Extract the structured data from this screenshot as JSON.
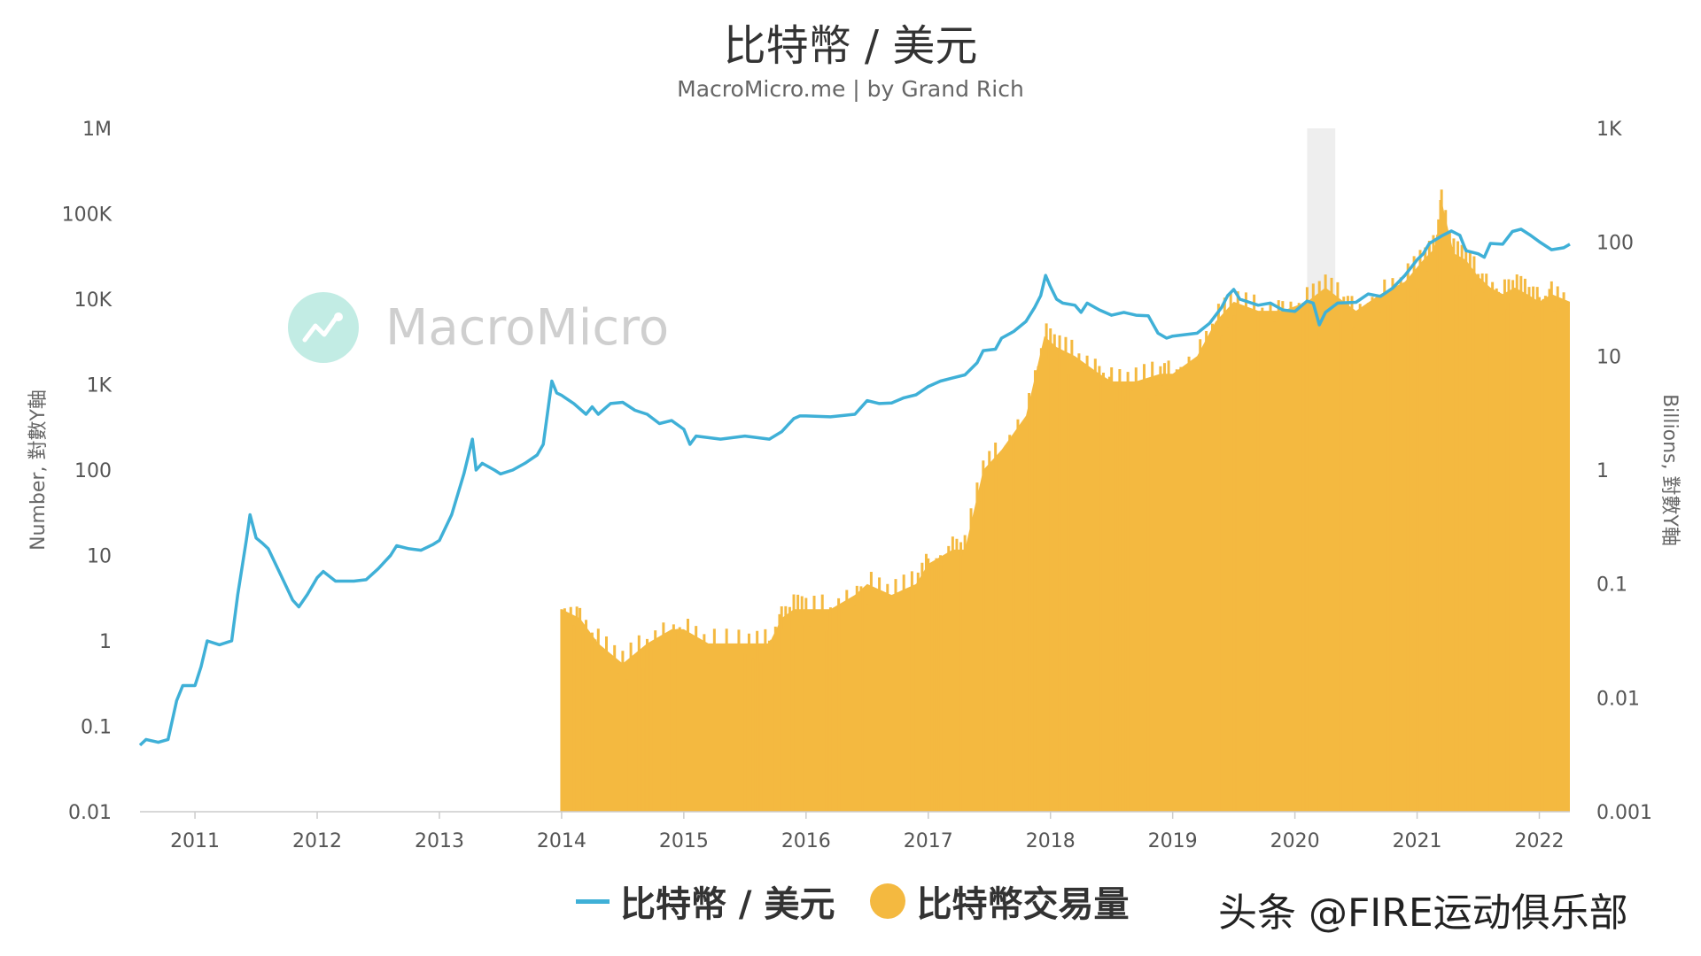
{
  "title": "比特幣 / 美元",
  "subtitle": "MacroMicro.me | by Grand Rich",
  "watermark": "MacroMicro",
  "credit": "头条 @FIRE运动俱乐部",
  "legend": {
    "price_label": "比特幣 / 美元",
    "volume_label": "比特幣交易量"
  },
  "colors": {
    "price": "#3fb0d7",
    "volume": "#f4b940",
    "shade": "#eeeeee"
  },
  "chart_data": {
    "type": "line",
    "left_axis": {
      "label": "Number, 對數Y軸",
      "scale": "log",
      "range": [
        0.01,
        1000000
      ],
      "ticks": [
        {
          "value": 0.01,
          "label": "0.01"
        },
        {
          "value": 0.1,
          "label": "0.1"
        },
        {
          "value": 1,
          "label": "1"
        },
        {
          "value": 10,
          "label": "10"
        },
        {
          "value": 100,
          "label": "100"
        },
        {
          "value": 1000,
          "label": "1K"
        },
        {
          "value": 10000,
          "label": "10K"
        },
        {
          "value": 100000,
          "label": "100K"
        },
        {
          "value": 1000000,
          "label": "1M"
        }
      ]
    },
    "right_axis": {
      "label": "Billions, 對數Y軸",
      "scale": "log",
      "range": [
        0.001,
        1000
      ],
      "ticks": [
        {
          "value": 0.001,
          "label": "0.001"
        },
        {
          "value": 0.01,
          "label": "0.01"
        },
        {
          "value": 0.1,
          "label": "0.1"
        },
        {
          "value": 1,
          "label": "1"
        },
        {
          "value": 10,
          "label": "10"
        },
        {
          "value": 100,
          "label": "100"
        },
        {
          "value": 1000,
          "label": "1K"
        }
      ]
    },
    "x_axis": {
      "range": [
        2010.55,
        2022.25
      ],
      "ticks": [
        "2011",
        "2012",
        "2013",
        "2014",
        "2015",
        "2016",
        "2017",
        "2018",
        "2019",
        "2020",
        "2021",
        "2022"
      ]
    },
    "shaded_period": [
      2020.1,
      2020.33
    ],
    "series": [
      {
        "name": "比特幣 / 美元",
        "axis": "left",
        "points": [
          [
            2010.55,
            0.06
          ],
          [
            2010.6,
            0.07
          ],
          [
            2010.7,
            0.065
          ],
          [
            2010.78,
            0.07
          ],
          [
            2010.85,
            0.2
          ],
          [
            2010.9,
            0.3
          ],
          [
            2011.0,
            0.3
          ],
          [
            2011.05,
            0.5
          ],
          [
            2011.1,
            1.0
          ],
          [
            2011.2,
            0.9
          ],
          [
            2011.3,
            1.0
          ],
          [
            2011.35,
            3.5
          ],
          [
            2011.42,
            15
          ],
          [
            2011.45,
            30
          ],
          [
            2011.5,
            16
          ],
          [
            2011.55,
            14
          ],
          [
            2011.6,
            12
          ],
          [
            2011.7,
            6
          ],
          [
            2011.8,
            3
          ],
          [
            2011.85,
            2.5
          ],
          [
            2011.92,
            3.5
          ],
          [
            2012.0,
            5.5
          ],
          [
            2012.05,
            6.5
          ],
          [
            2012.15,
            5
          ],
          [
            2012.3,
            5
          ],
          [
            2012.4,
            5.2
          ],
          [
            2012.5,
            7
          ],
          [
            2012.6,
            10
          ],
          [
            2012.65,
            13
          ],
          [
            2012.75,
            12
          ],
          [
            2012.85,
            11.5
          ],
          [
            2012.95,
            13.5
          ],
          [
            2013.0,
            15
          ],
          [
            2013.1,
            30
          ],
          [
            2013.2,
            90
          ],
          [
            2013.27,
            230
          ],
          [
            2013.3,
            100
          ],
          [
            2013.35,
            120
          ],
          [
            2013.45,
            100
          ],
          [
            2013.5,
            90
          ],
          [
            2013.6,
            100
          ],
          [
            2013.7,
            120
          ],
          [
            2013.8,
            150
          ],
          [
            2013.85,
            200
          ],
          [
            2013.92,
            1100
          ],
          [
            2013.96,
            800
          ],
          [
            2014.0,
            750
          ],
          [
            2014.1,
            600
          ],
          [
            2014.2,
            450
          ],
          [
            2014.25,
            550
          ],
          [
            2014.3,
            450
          ],
          [
            2014.4,
            600
          ],
          [
            2014.5,
            620
          ],
          [
            2014.6,
            500
          ],
          [
            2014.7,
            450
          ],
          [
            2014.8,
            350
          ],
          [
            2014.9,
            380
          ],
          [
            2015.0,
            300
          ],
          [
            2015.05,
            200
          ],
          [
            2015.1,
            250
          ],
          [
            2015.3,
            230
          ],
          [
            2015.5,
            250
          ],
          [
            2015.7,
            230
          ],
          [
            2015.8,
            280
          ],
          [
            2015.9,
            400
          ],
          [
            2015.95,
            430
          ],
          [
            2016.0,
            430
          ],
          [
            2016.2,
            420
          ],
          [
            2016.4,
            450
          ],
          [
            2016.5,
            650
          ],
          [
            2016.6,
            600
          ],
          [
            2016.7,
            610
          ],
          [
            2016.8,
            700
          ],
          [
            2016.9,
            760
          ],
          [
            2017.0,
            950
          ],
          [
            2017.1,
            1100
          ],
          [
            2017.2,
            1200
          ],
          [
            2017.3,
            1300
          ],
          [
            2017.4,
            1800
          ],
          [
            2017.45,
            2500
          ],
          [
            2017.55,
            2600
          ],
          [
            2017.6,
            3500
          ],
          [
            2017.7,
            4200
          ],
          [
            2017.8,
            5500
          ],
          [
            2017.87,
            8000
          ],
          [
            2017.92,
            11000
          ],
          [
            2017.96,
            19000
          ],
          [
            2018.0,
            14000
          ],
          [
            2018.05,
            10000
          ],
          [
            2018.1,
            9000
          ],
          [
            2018.2,
            8500
          ],
          [
            2018.25,
            7000
          ],
          [
            2018.3,
            9000
          ],
          [
            2018.4,
            7500
          ],
          [
            2018.5,
            6500
          ],
          [
            2018.6,
            7000
          ],
          [
            2018.7,
            6500
          ],
          [
            2018.8,
            6400
          ],
          [
            2018.88,
            4000
          ],
          [
            2018.95,
            3500
          ],
          [
            2019.0,
            3700
          ],
          [
            2019.2,
            4000
          ],
          [
            2019.3,
            5200
          ],
          [
            2019.4,
            8000
          ],
          [
            2019.45,
            11000
          ],
          [
            2019.5,
            13000
          ],
          [
            2019.55,
            10000
          ],
          [
            2019.7,
            8500
          ],
          [
            2019.8,
            9000
          ],
          [
            2019.9,
            7500
          ],
          [
            2020.0,
            7200
          ],
          [
            2020.1,
            9500
          ],
          [
            2020.15,
            9000
          ],
          [
            2020.2,
            5000
          ],
          [
            2020.25,
            7000
          ],
          [
            2020.35,
            9000
          ],
          [
            2020.5,
            9200
          ],
          [
            2020.6,
            11500
          ],
          [
            2020.7,
            10800
          ],
          [
            2020.8,
            13500
          ],
          [
            2020.9,
            19000
          ],
          [
            2021.0,
            29000
          ],
          [
            2021.05,
            34000
          ],
          [
            2021.1,
            45000
          ],
          [
            2021.2,
            55000
          ],
          [
            2021.28,
            63000
          ],
          [
            2021.35,
            56000
          ],
          [
            2021.4,
            37000
          ],
          [
            2021.5,
            34000
          ],
          [
            2021.55,
            31000
          ],
          [
            2021.6,
            45000
          ],
          [
            2021.7,
            44000
          ],
          [
            2021.78,
            62000
          ],
          [
            2021.85,
            66000
          ],
          [
            2021.92,
            57000
          ],
          [
            2022.0,
            47000
          ],
          [
            2022.1,
            38000
          ],
          [
            2022.2,
            40000
          ],
          [
            2022.25,
            44000
          ]
        ]
      },
      {
        "name": "比特幣交易量",
        "axis": "right",
        "type": "bar",
        "points": [
          [
            2014.0,
            0.06
          ],
          [
            2014.15,
            0.05
          ],
          [
            2014.3,
            0.03
          ],
          [
            2014.5,
            0.02
          ],
          [
            2014.7,
            0.03
          ],
          [
            2014.9,
            0.04
          ],
          [
            2015.0,
            0.04
          ],
          [
            2015.2,
            0.03
          ],
          [
            2015.5,
            0.03
          ],
          [
            2015.7,
            0.03
          ],
          [
            2015.8,
            0.05
          ],
          [
            2015.9,
            0.06
          ],
          [
            2016.0,
            0.06
          ],
          [
            2016.2,
            0.06
          ],
          [
            2016.4,
            0.08
          ],
          [
            2016.5,
            0.1
          ],
          [
            2016.7,
            0.08
          ],
          [
            2016.9,
            0.1
          ],
          [
            2017.0,
            0.15
          ],
          [
            2017.2,
            0.2
          ],
          [
            2017.3,
            0.2
          ],
          [
            2017.45,
            1.0
          ],
          [
            2017.6,
            1.5
          ],
          [
            2017.8,
            3.0
          ],
          [
            2017.95,
            15
          ],
          [
            2018.05,
            12
          ],
          [
            2018.2,
            10
          ],
          [
            2018.4,
            7
          ],
          [
            2018.5,
            6
          ],
          [
            2018.7,
            6
          ],
          [
            2018.9,
            7
          ],
          [
            2019.0,
            7
          ],
          [
            2019.2,
            10
          ],
          [
            2019.35,
            20
          ],
          [
            2019.5,
            30
          ],
          [
            2019.7,
            25
          ],
          [
            2019.9,
            25
          ],
          [
            2020.1,
            30
          ],
          [
            2020.25,
            40
          ],
          [
            2020.4,
            30
          ],
          [
            2020.5,
            25
          ],
          [
            2020.7,
            35
          ],
          [
            2020.9,
            45
          ],
          [
            2021.05,
            70
          ],
          [
            2021.15,
            90
          ],
          [
            2021.2,
            230
          ],
          [
            2021.3,
            80
          ],
          [
            2021.4,
            70
          ],
          [
            2021.5,
            50
          ],
          [
            2021.6,
            40
          ],
          [
            2021.7,
            35
          ],
          [
            2021.8,
            40
          ],
          [
            2021.9,
            35
          ],
          [
            2022.0,
            30
          ],
          [
            2022.1,
            35
          ],
          [
            2022.25,
            30
          ]
        ]
      }
    ]
  }
}
